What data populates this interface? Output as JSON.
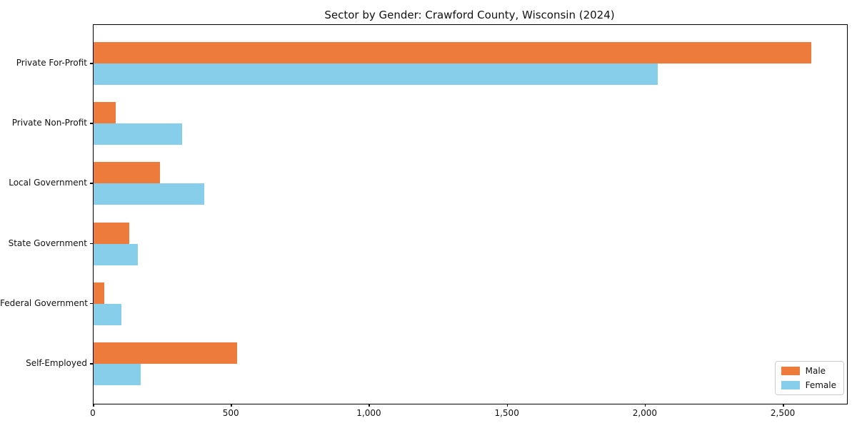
{
  "chart_data": {
    "type": "bar",
    "orientation": "horizontal",
    "title": "Sector by Gender: Crawford County, Wisconsin (2024)",
    "categories": [
      "Private For-Profit",
      "Private Non-Profit",
      "Local Government",
      "State Government",
      "Federal Government",
      "Self-Employed"
    ],
    "series": [
      {
        "name": "Male",
        "color": "#EC7B3C",
        "values": [
          2600,
          80,
          240,
          130,
          40,
          520
        ]
      },
      {
        "name": "Female",
        "color": "#87CEEB",
        "values": [
          2045,
          320,
          400,
          160,
          100,
          170
        ]
      }
    ],
    "xlabel": "",
    "ylabel": "",
    "xlim": [
      0,
      2730
    ],
    "xticks": {
      "values": [
        0,
        500,
        1000,
        1500,
        2000,
        2500
      ],
      "labels": [
        "0",
        "500",
        "1,000",
        "1,500",
        "2,000",
        "2,500"
      ]
    },
    "grid": false,
    "legend_position": "lower right",
    "frame_color": "#000000"
  }
}
